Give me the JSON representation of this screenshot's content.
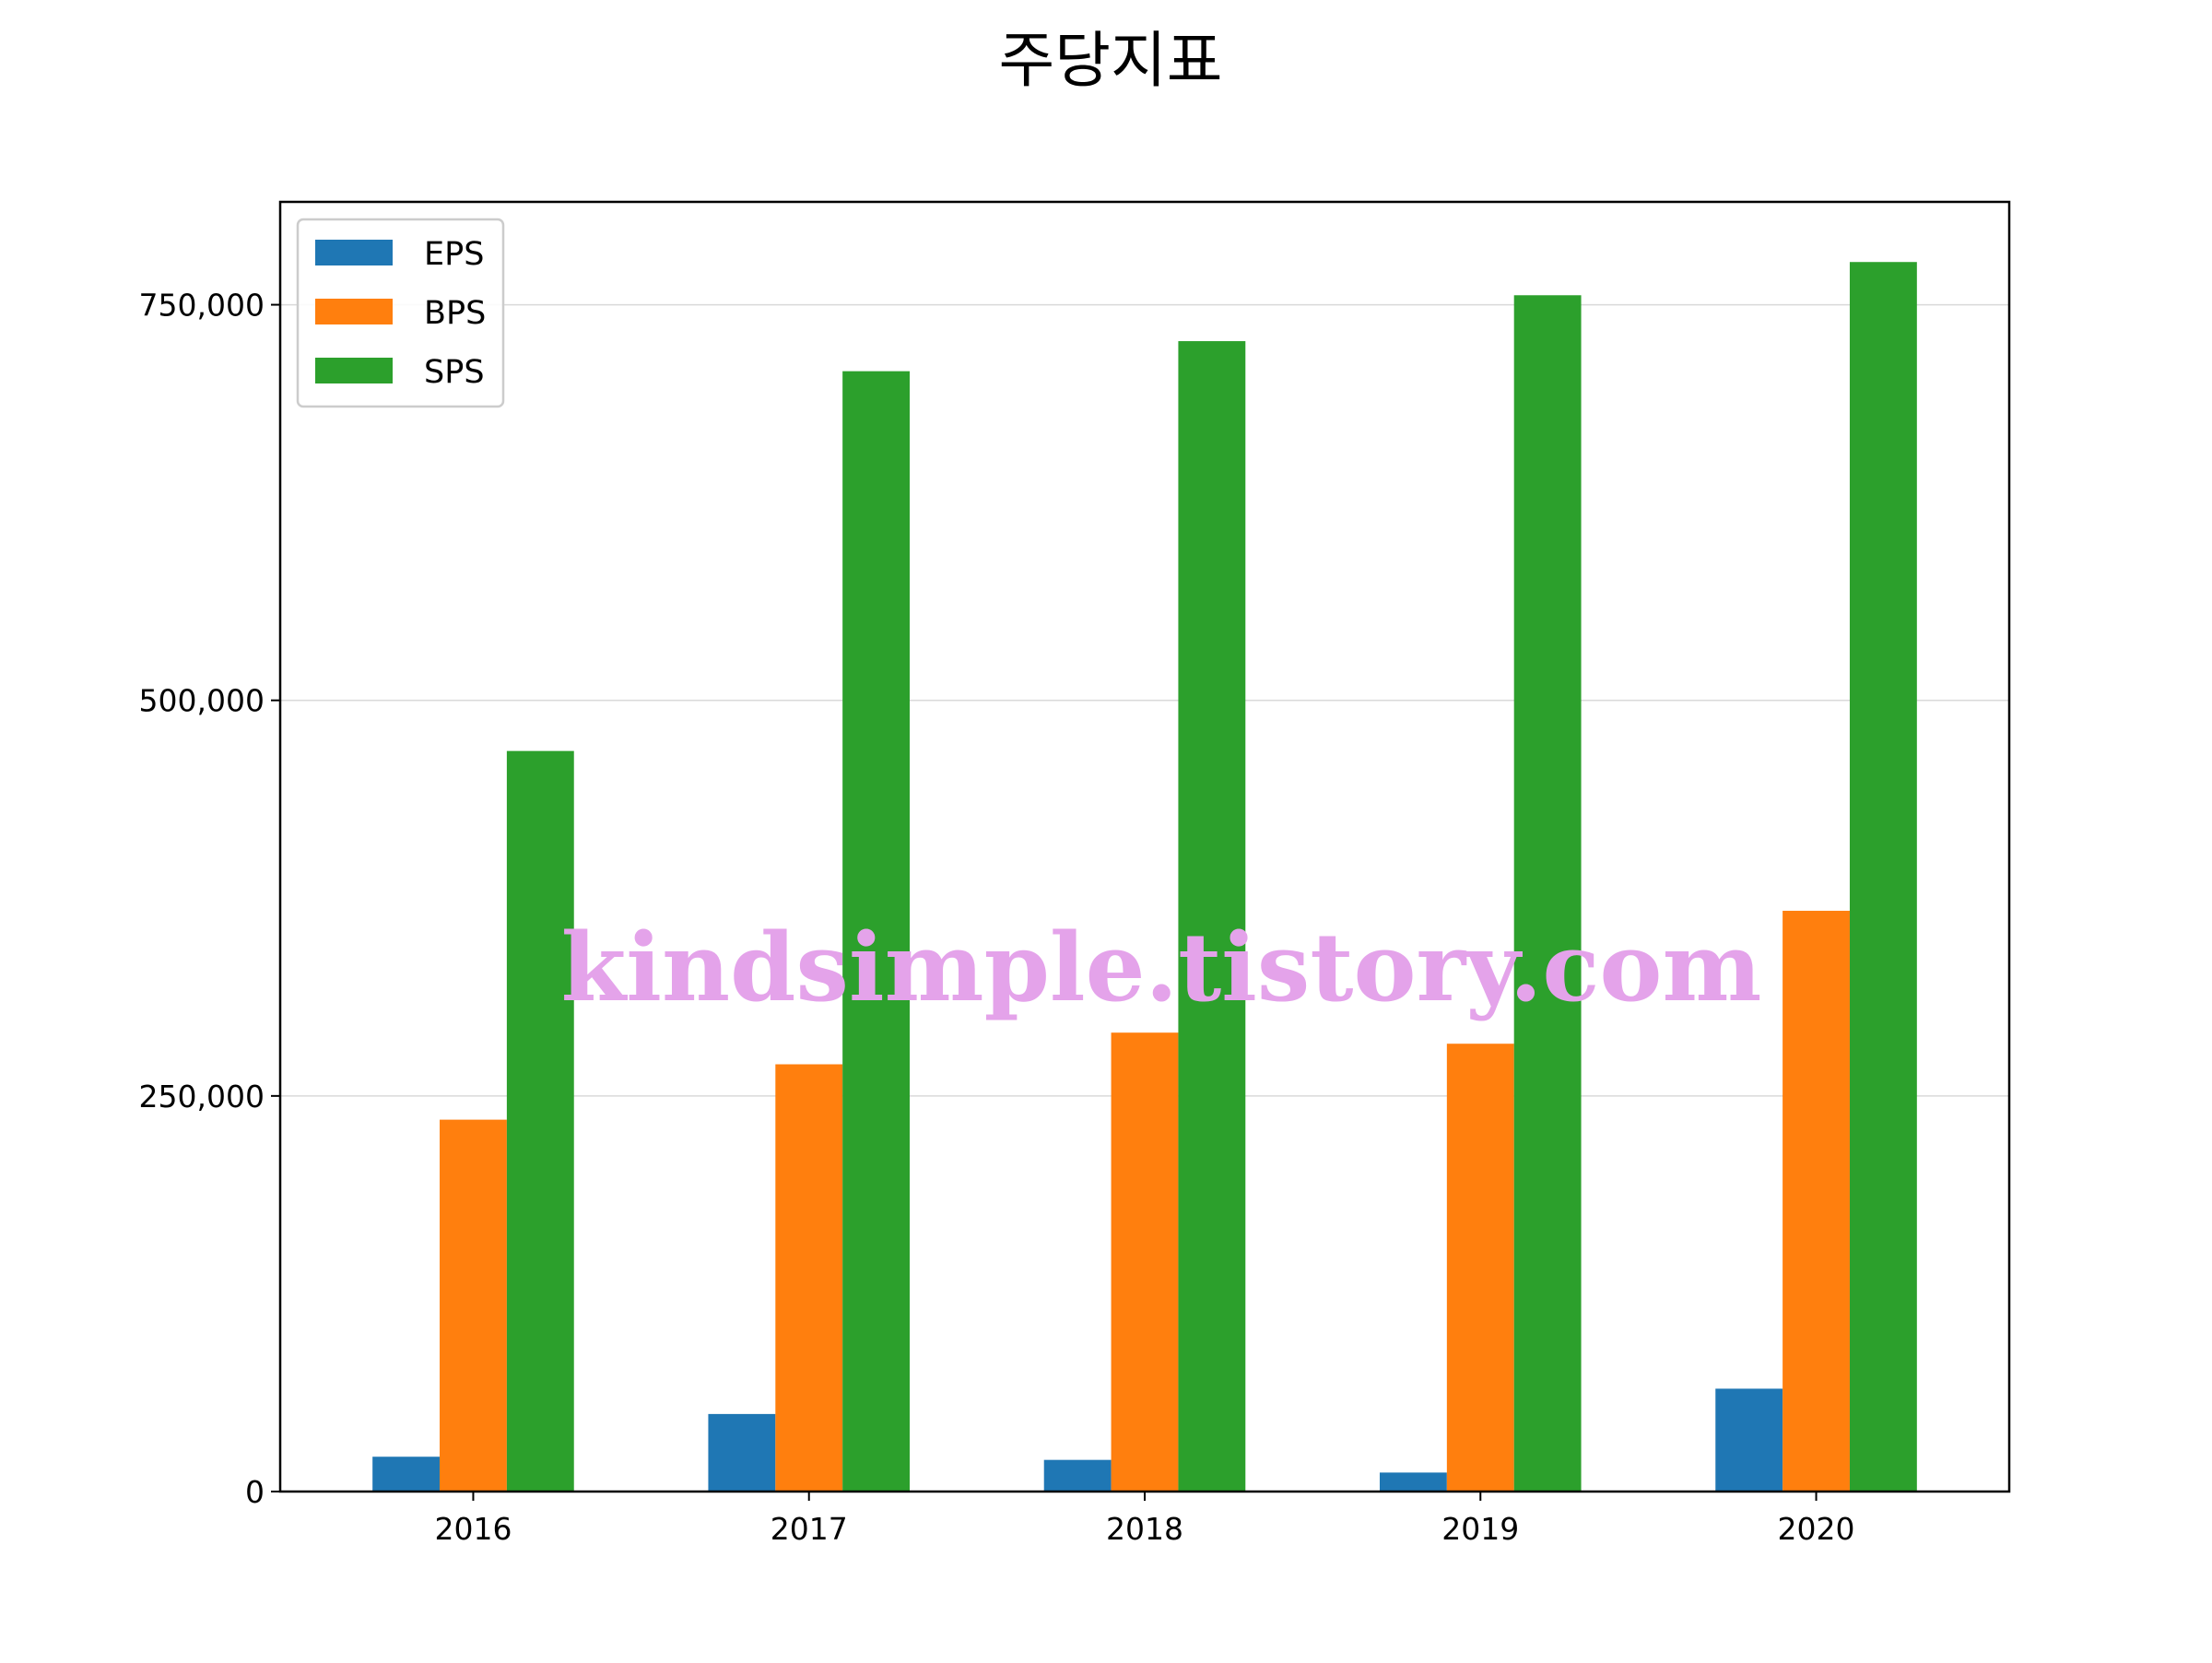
{
  "chart_data": {
    "type": "bar",
    "title": "주당지표",
    "xlabel": "",
    "ylabel": "",
    "categories": [
      "2016",
      "2017",
      "2018",
      "2019",
      "2020"
    ],
    "series": [
      {
        "name": "EPS",
        "color": "#1f77b4",
        "values": [
          22000,
          49000,
          20000,
          12000,
          65000
        ]
      },
      {
        "name": "BPS",
        "color": "#ff7f0e",
        "values": [
          235000,
          270000,
          290000,
          283000,
          367000
        ]
      },
      {
        "name": "SPS",
        "color": "#2ca02c",
        "values": [
          468000,
          708000,
          727000,
          756000,
          777000
        ]
      }
    ],
    "ylim": [
      0,
      815000
    ],
    "yticks": [
      0,
      250000,
      500000,
      750000
    ],
    "ytick_labels": [
      "0",
      "250,000",
      "500,000",
      "750,000"
    ],
    "grid": "y",
    "legend_position": "upper-left"
  },
  "watermark": "kindsimple.tistory.com"
}
